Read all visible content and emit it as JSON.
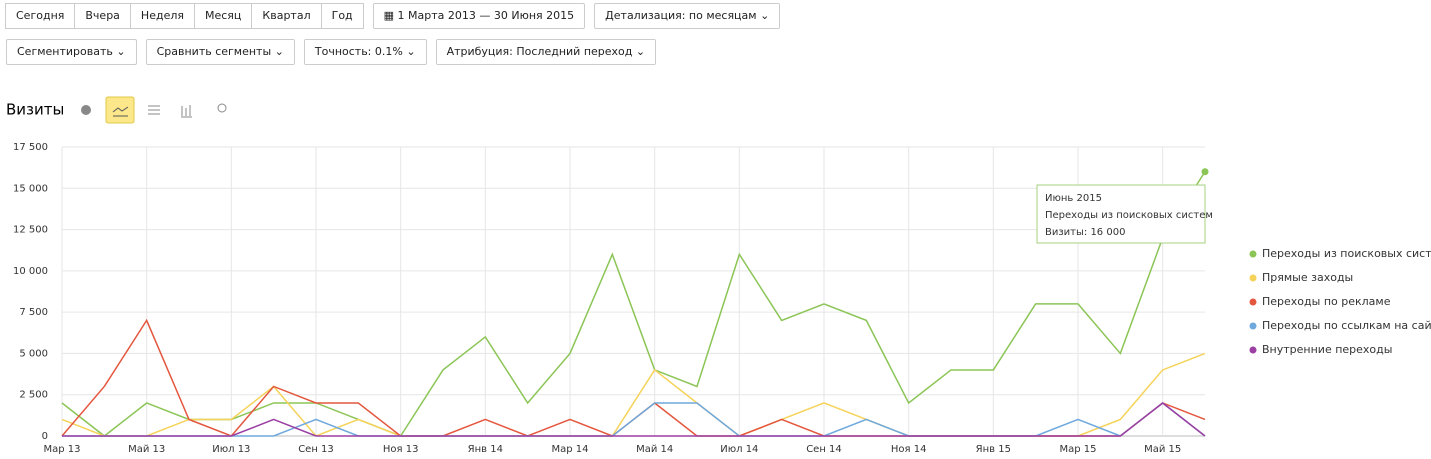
{
  "toolbar": {
    "periods": [
      "Сегодня",
      "Вчера",
      "Неделя",
      "Месяц",
      "Квартал",
      "Год"
    ],
    "date_range": "1 Марта 2013 — 30 Июня 2015",
    "detail": "Детализация: по месяцам"
  },
  "filters": [
    "Сегментировать",
    "Сравнить сегменты",
    "Точность: 0.1%",
    "Атрибуция: Последний переход"
  ],
  "chart_data": {
    "type": "line",
    "title": "Визиты",
    "categories": [
      "Мар 13",
      null,
      "Май 13",
      null,
      "Июл 13",
      null,
      "Сен 13",
      null,
      "Ноя 13",
      null,
      "Янв 14",
      null,
      "Мар 14",
      null,
      "Май 14",
      null,
      "Июл 14",
      null,
      "Сен 14",
      null,
      "Ноя 14",
      null,
      "Янв 15",
      null,
      "Мар 15",
      null,
      "Май 15",
      null
    ],
    "series": [
      {
        "name": "Переходы из поисковых систем",
        "color": "#8bc556",
        "values": [
          2000,
          0,
          2000,
          1000,
          1000,
          2000,
          2000,
          1000,
          0,
          4000,
          6000,
          2000,
          5000,
          11000,
          4000,
          3000,
          11000,
          7000,
          8000,
          7000,
          2000,
          4000,
          4000,
          8000,
          8000,
          5000,
          12000,
          16000
        ]
      },
      {
        "name": "Прямые заходы",
        "color": "#f5d35a",
        "values": [
          1000,
          0,
          0,
          1000,
          1000,
          3000,
          0,
          1000,
          0,
          0,
          0,
          0,
          0,
          0,
          4000,
          2000,
          0,
          1000,
          2000,
          1000,
          0,
          0,
          0,
          0,
          0,
          1000,
          4000,
          5000
        ]
      },
      {
        "name": "Переходы по рекламе",
        "color": "#e4573f",
        "values": [
          0,
          3000,
          7000,
          1000,
          0,
          3000,
          2000,
          2000,
          0,
          0,
          1000,
          0,
          1000,
          0,
          2000,
          0,
          0,
          1000,
          0,
          0,
          0,
          0,
          0,
          0,
          0,
          0,
          2000,
          1000
        ]
      },
      {
        "name": "Переходы по ссылкам на сайтах",
        "color": "#6fa8dc",
        "values": [
          0,
          0,
          0,
          0,
          0,
          0,
          1000,
          0,
          0,
          0,
          0,
          0,
          0,
          0,
          2000,
          2000,
          0,
          0,
          0,
          1000,
          0,
          0,
          0,
          0,
          1000,
          0,
          2000,
          0
        ]
      },
      {
        "name": "Внутренние переходы",
        "color": "#9b3fa3",
        "values": [
          0,
          0,
          0,
          0,
          0,
          1000,
          0,
          0,
          0,
          0,
          0,
          0,
          0,
          0,
          0,
          0,
          0,
          0,
          0,
          0,
          0,
          0,
          0,
          0,
          0,
          0,
          2000,
          0
        ]
      }
    ],
    "ylim": [
      0,
      17500
    ],
    "yticks": [
      0,
      {
        "value": 2500,
        "label": "2 500"
      },
      {
        "value": 5000,
        "label": "5 000"
      },
      {
        "value": 7500,
        "label": "7 500"
      },
      {
        "value": 10000,
        "label": "10 000"
      },
      {
        "value": 12500,
        "label": "12 500"
      },
      {
        "value": 15000,
        "label": "15 000"
      },
      {
        "value": 17500,
        "label": "17 500"
      }
    ],
    "grid": true,
    "legend": "right",
    "tooltip": {
      "title": "Июнь 2015",
      "series": "Переходы из поисковых систем",
      "text": "Визиты: 16 000"
    }
  }
}
